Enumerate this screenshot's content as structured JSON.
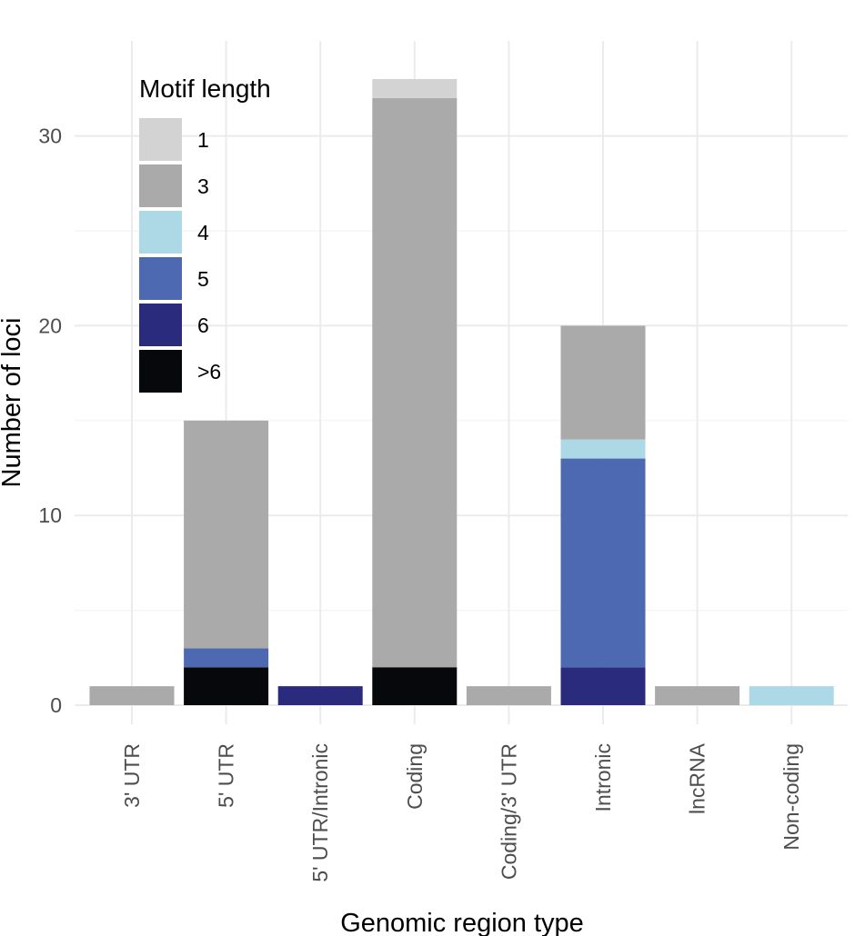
{
  "chart_data": {
    "type": "bar",
    "stacked": true,
    "xlabel": "Genomic region type",
    "ylabel": "Number of loci",
    "ylim": [
      0,
      33
    ],
    "y_ticks": [
      0,
      10,
      20,
      30
    ],
    "grid": true,
    "categories": [
      "3' UTR",
      "5' UTR",
      "5' UTR/Intronic",
      "Coding",
      "Coding/3' UTR",
      "Intronic",
      "lncRNA",
      "Non-coding"
    ],
    "legend": {
      "title": "Motif length",
      "position": "top-left"
    },
    "series": [
      {
        "name": ">6",
        "color": "#07080b",
        "values": [
          0,
          2,
          0,
          2,
          0,
          0,
          0,
          0
        ]
      },
      {
        "name": "6",
        "color": "#2a2b7c",
        "values": [
          0,
          0,
          1,
          0,
          0,
          2,
          0,
          0
        ]
      },
      {
        "name": "5",
        "color": "#4c69b1",
        "values": [
          0,
          1,
          0,
          0,
          0,
          11,
          0,
          0
        ]
      },
      {
        "name": "4",
        "color": "#add8e6",
        "values": [
          0,
          0,
          0,
          0,
          0,
          1,
          0,
          1
        ]
      },
      {
        "name": "3",
        "color": "#aaaaaa",
        "values": [
          1,
          12,
          0,
          30,
          1,
          6,
          1,
          0
        ]
      },
      {
        "name": "1",
        "color": "#d3d3d3",
        "values": [
          0,
          0,
          0,
          1,
          0,
          0,
          0,
          0
        ]
      }
    ],
    "legend_order": [
      "1",
      "3",
      "4",
      "5",
      "6",
      ">6"
    ]
  }
}
